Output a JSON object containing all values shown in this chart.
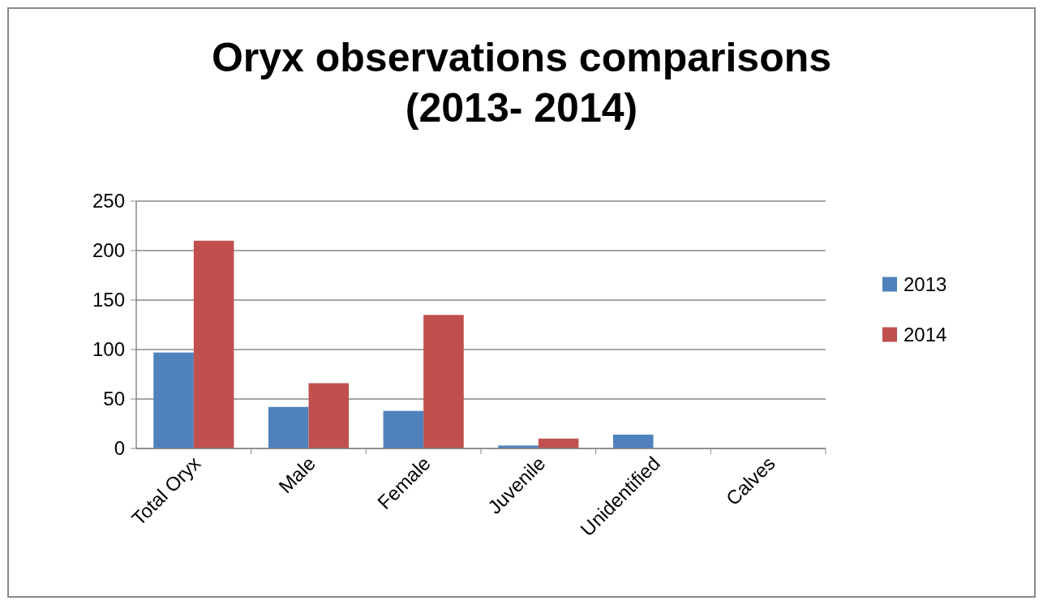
{
  "chart_data": {
    "type": "bar",
    "title": "Oryx observations comparisons\n(2013- 2014)",
    "categories": [
      "Total Oryx",
      "Male",
      "Female",
      "Juvenile",
      "Unidentified",
      "Calves"
    ],
    "series": [
      {
        "name": "2013",
        "color": "#4f81bd",
        "values": [
          97,
          42,
          38,
          3,
          14,
          0
        ]
      },
      {
        "name": "2014",
        "color": "#c0504d",
        "values": [
          210,
          66,
          135,
          10,
          0,
          0
        ]
      }
    ],
    "ylim": [
      0,
      250
    ],
    "yticks": [
      0,
      50,
      100,
      150,
      200,
      250
    ],
    "grid": "y",
    "legend": "right"
  }
}
